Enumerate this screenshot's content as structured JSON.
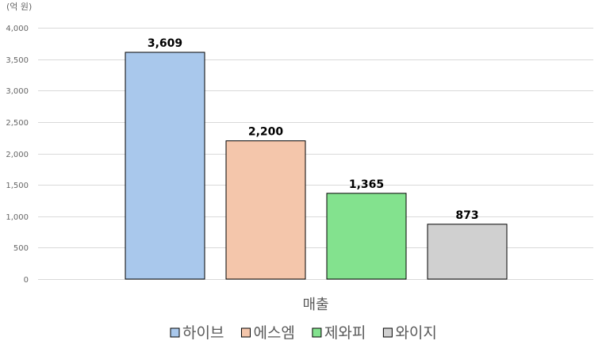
{
  "chart_data": {
    "type": "bar",
    "unit_label": "(억 원)",
    "categories": [
      "매출"
    ],
    "series": [
      {
        "name": "하이브",
        "values": [
          3609
        ],
        "label": "3,609",
        "color": "#a9c8ec"
      },
      {
        "name": "에스엠",
        "values": [
          2200
        ],
        "label": "2,200",
        "color": "#f4c6ab"
      },
      {
        "name": "제와피",
        "values": [
          1365
        ],
        "label": "1,365",
        "color": "#83e28e"
      },
      {
        "name": "와이지",
        "values": [
          873
        ],
        "label": "873",
        "color": "#d0d0d0"
      }
    ],
    "ylim": [
      0,
      4000
    ],
    "yticks": [
      0,
      500,
      1000,
      1500,
      2000,
      2500,
      3000,
      3500,
      4000
    ],
    "ytick_labels": [
      "0",
      "500",
      "1,000",
      "1,500",
      "2,000",
      "2,500",
      "3,000",
      "3,500",
      "4,000"
    ],
    "grid": true,
    "legend_position": "bottom"
  }
}
